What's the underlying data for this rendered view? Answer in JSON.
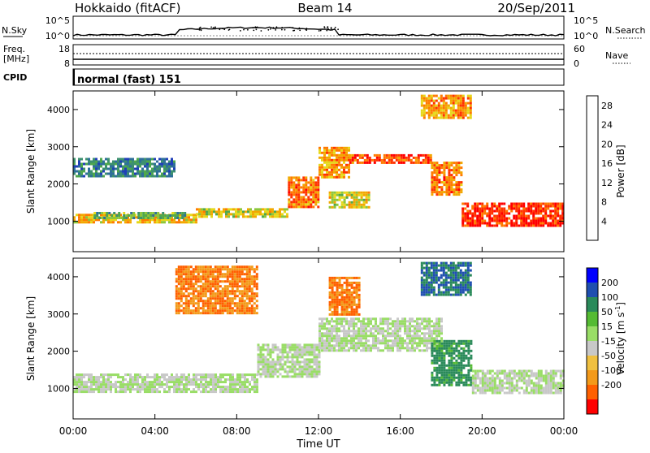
{
  "header": {
    "site": "Hokkaido (fitACF)",
    "beam": "Beam 14",
    "date": "20/Sep/2011"
  },
  "noise_panel": {
    "left_label": "N.Sky",
    "right_label": "N.Search",
    "left_ticks": [
      "10^5",
      "10^0"
    ],
    "right_ticks": [
      "10^5",
      "10^0"
    ]
  },
  "freq_panel": {
    "left_label_1": "Freq.",
    "left_label_2": "[MHz]",
    "right_label": "Nave",
    "left_ticks": [
      "18",
      "8"
    ],
    "right_ticks": [
      "60",
      "0"
    ]
  },
  "cpid_panel": {
    "label": "CPID",
    "text": "normal (fast) 151"
  },
  "colors": {
    "power": [
      "#0000ff",
      "#1f3fb8",
      "#2e6f9a",
      "#3d9070",
      "#4fa84c",
      "#8cc63a",
      "#e6d81a",
      "#f2a800",
      "#ff7a00",
      "#ff3300",
      "#ff0000"
    ],
    "velocity": [
      "#ff0000",
      "#ff6000",
      "#f39a1a",
      "#f0c040",
      "#c8c8c8",
      "#99dd66",
      "#55bb33",
      "#2a8a5a",
      "#1f4fb0",
      "#0000ff"
    ]
  },
  "chart_data": [
    {
      "type": "heatmap",
      "title": "",
      "xlabel": "Time UT",
      "ylabel": "Slant Range [km]",
      "xlim": [
        "00:00",
        "24:00"
      ],
      "ylim": [
        180,
        4500
      ],
      "x_ticks": [
        "00:00",
        "04:00",
        "08:00",
        "12:00",
        "16:00",
        "20:00",
        "00:00"
      ],
      "y_ticks": [
        1000,
        2000,
        3000,
        4000
      ],
      "colorbar": {
        "label": "Power [dB]",
        "ticks": [
          4,
          8,
          12,
          16,
          20,
          24,
          28
        ],
        "range": [
          0,
          30
        ]
      },
      "regions": [
        {
          "t": [
            0,
            6
          ],
          "r": [
            950,
            1200
          ],
          "value": 20
        },
        {
          "t": [
            1,
            5.5
          ],
          "r": [
            1100,
            1250
          ],
          "value": 12
        },
        {
          "t": [
            6,
            10.5
          ],
          "r": [
            1150,
            1350
          ],
          "value": 18
        },
        {
          "t": [
            10.5,
            12
          ],
          "r": [
            1350,
            2200
          ],
          "value": 24
        },
        {
          "t": [
            12,
            13.5
          ],
          "r": [
            2200,
            3000
          ],
          "value": 22
        },
        {
          "t": [
            13.5,
            17.5
          ],
          "r": [
            2600,
            2800
          ],
          "value": 26
        },
        {
          "t": [
            0,
            5
          ],
          "r": [
            2200,
            2700
          ],
          "value": 8
        },
        {
          "t": [
            17.5,
            19
          ],
          "r": [
            1700,
            2600
          ],
          "value": 24
        },
        {
          "t": [
            19,
            24
          ],
          "r": [
            900,
            1500
          ],
          "value": 28
        },
        {
          "t": [
            17,
            19.5
          ],
          "r": [
            3800,
            4400
          ],
          "value": 22
        },
        {
          "t": [
            12.5,
            14.5
          ],
          "r": [
            1400,
            1800
          ],
          "value": 18
        }
      ]
    },
    {
      "type": "heatmap",
      "title": "",
      "xlabel": "Time UT",
      "ylabel": "Slant Range [km]",
      "xlim": [
        "00:00",
        "24:00"
      ],
      "ylim": [
        180,
        4500
      ],
      "x_ticks": [
        "00:00",
        "04:00",
        "08:00",
        "12:00",
        "16:00",
        "20:00",
        "00:00"
      ],
      "y_ticks": [
        1000,
        2000,
        3000,
        4000
      ],
      "colorbar": {
        "label": "Velocity [m s^-1]",
        "ticks": [
          200,
          100,
          50,
          15,
          -15,
          -50,
          -100,
          -200
        ]
      },
      "regions": [
        {
          "t": [
            0,
            9
          ],
          "r": [
            900,
            1400
          ],
          "value": 0
        },
        {
          "t": [
            9,
            12
          ],
          "r": [
            1300,
            2200
          ],
          "value": 0
        },
        {
          "t": [
            12,
            18
          ],
          "r": [
            2000,
            2900
          ],
          "value": 0
        },
        {
          "t": [
            17.5,
            19.5
          ],
          "r": [
            1100,
            2300
          ],
          "value": 30
        },
        {
          "t": [
            19.5,
            24
          ],
          "r": [
            900,
            1500
          ],
          "value": 0
        },
        {
          "t": [
            17,
            19.5
          ],
          "r": [
            3500,
            4400
          ],
          "value": 40
        },
        {
          "t": [
            5,
            9
          ],
          "r": [
            3000,
            4300
          ],
          "value": -40
        },
        {
          "t": [
            12.5,
            14
          ],
          "r": [
            3000,
            4000
          ],
          "value": -40
        }
      ]
    }
  ]
}
